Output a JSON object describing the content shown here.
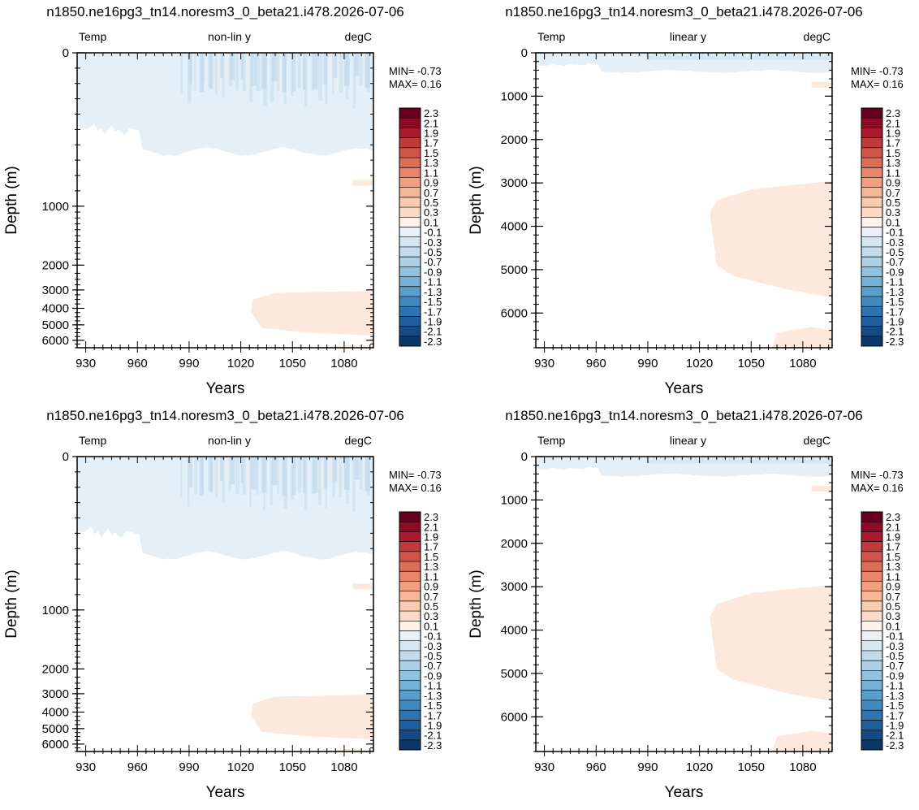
{
  "chart_data": [
    {
      "type": "heatmap",
      "title": "n1850.ne16pg3_tn14.noresm3_0_beta21.i478.2026-07-06",
      "left_label": "Temp",
      "center_label": "non-lin y",
      "right_label": "degC",
      "xlabel": "Years",
      "ylabel": "Depth (m)",
      "x_ticks": [
        930,
        960,
        990,
        1020,
        1050,
        1080
      ],
      "y_ticks": [
        0,
        1000,
        2000,
        3000,
        4000,
        5000,
        6000
      ],
      "y_scale": "non-linear",
      "min_label": "MIN= -0.73",
      "max_label": "MAX=  0.16",
      "colorbar_levels": [
        "2.3",
        "2.1",
        "1.9",
        "1.7",
        "1.5",
        "1.3",
        "1.1",
        "0.9",
        "0.7",
        "0.5",
        "0.3",
        "0.1",
        "-0.1",
        "-0.3",
        "-0.5",
        "-0.7",
        "-0.9",
        "-1.1",
        "-1.3",
        "-1.5",
        "-1.7",
        "-1.9",
        "-2.1",
        "-2.3"
      ]
    },
    {
      "type": "heatmap",
      "title": "n1850.ne16pg3_tn14.noresm3_0_beta21.i478.2026-07-06",
      "left_label": "Temp",
      "center_label": "linear y",
      "right_label": "degC",
      "xlabel": "Years",
      "ylabel": "Depth (m)",
      "x_ticks": [
        930,
        960,
        990,
        1020,
        1050,
        1080
      ],
      "y_ticks": [
        0,
        1000,
        2000,
        3000,
        4000,
        5000,
        6000
      ],
      "y_scale": "linear",
      "min_label": "MIN= -0.73",
      "max_label": "MAX=  0.16",
      "colorbar_levels": [
        "2.3",
        "2.1",
        "1.9",
        "1.7",
        "1.5",
        "1.3",
        "1.1",
        "0.9",
        "0.7",
        "0.5",
        "0.3",
        "0.1",
        "-0.1",
        "-0.3",
        "-0.5",
        "-0.7",
        "-0.9",
        "-1.1",
        "-1.3",
        "-1.5",
        "-1.7",
        "-1.9",
        "-2.1",
        "-2.3"
      ]
    },
    {
      "type": "heatmap",
      "title": "n1850.ne16pg3_tn14.noresm3_0_beta21.i478.2026-07-06",
      "left_label": "Temp",
      "center_label": "non-lin y",
      "right_label": "degC",
      "xlabel": "Years",
      "ylabel": "Depth (m)",
      "x_ticks": [
        930,
        960,
        990,
        1020,
        1050,
        1080
      ],
      "y_ticks": [
        0,
        1000,
        2000,
        3000,
        4000,
        5000,
        6000
      ],
      "y_scale": "non-linear",
      "min_label": "MIN= -0.73",
      "max_label": "MAX=  0.16",
      "colorbar_levels": [
        "2.3",
        "2.1",
        "1.9",
        "1.7",
        "1.5",
        "1.3",
        "1.1",
        "0.9",
        "0.7",
        "0.5",
        "0.3",
        "0.1",
        "-0.1",
        "-0.3",
        "-0.5",
        "-0.7",
        "-0.9",
        "-1.1",
        "-1.3",
        "-1.5",
        "-1.7",
        "-1.9",
        "-2.1",
        "-2.3"
      ]
    },
    {
      "type": "heatmap",
      "title": "n1850.ne16pg3_tn14.noresm3_0_beta21.i478.2026-07-06",
      "left_label": "Temp",
      "center_label": "linear y",
      "right_label": "degC",
      "xlabel": "Years",
      "ylabel": "Depth (m)",
      "x_ticks": [
        930,
        960,
        990,
        1020,
        1050,
        1080
      ],
      "y_ticks": [
        0,
        1000,
        2000,
        3000,
        4000,
        5000,
        6000
      ],
      "y_scale": "linear",
      "min_label": "MIN= -0.73",
      "max_label": "MAX=  0.16",
      "colorbar_levels": [
        "2.3",
        "2.1",
        "1.9",
        "1.7",
        "1.5",
        "1.3",
        "1.1",
        "0.9",
        "0.7",
        "0.5",
        "0.3",
        "0.1",
        "-0.1",
        "-0.3",
        "-0.5",
        "-0.7",
        "-0.9",
        "-1.1",
        "-1.3",
        "-1.5",
        "-1.7",
        "-1.9",
        "-2.1",
        "-2.3"
      ]
    }
  ],
  "colors": {
    "colorbar": [
      "#67001f",
      "#8b0a26",
      "#a91a2e",
      "#bf3a3a",
      "#d05548",
      "#dc6e57",
      "#e7866a",
      "#f09f80",
      "#f6b799",
      "#f9cbb0",
      "#fbdbc8",
      "#fef2ea",
      "#eaf1f8",
      "#d6e7f2",
      "#c3dcec",
      "#acd0e5",
      "#91c2de",
      "#75b1d5",
      "#5a9ecb",
      "#4189bf",
      "#2d74b1",
      "#1f5f9d",
      "#154b84",
      "#0b3668"
    ],
    "neg_light": "#e4eff7",
    "neg_mid": "#cfe3f0",
    "neg_dark": "#c0d9eb",
    "pos_light": "#fde8dc"
  }
}
